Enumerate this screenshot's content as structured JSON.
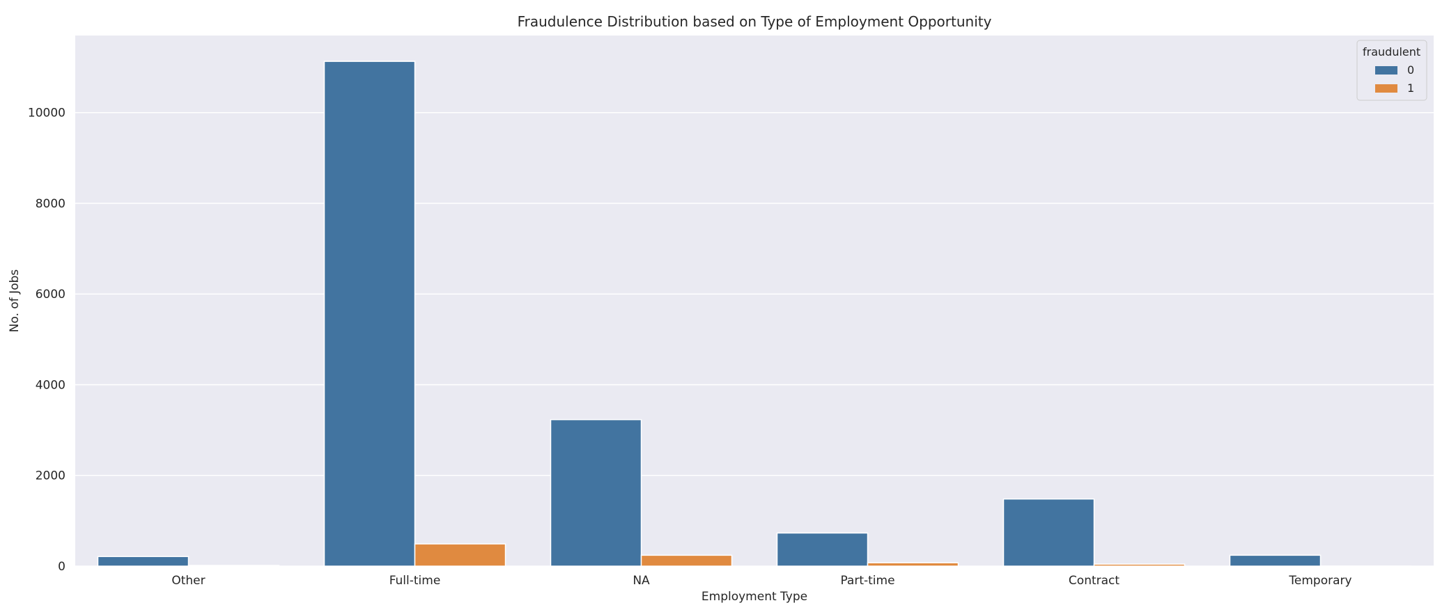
{
  "chart_data": {
    "type": "bar",
    "title": "Fraudulence Distribution based on Type of Employment Opportunity",
    "xlabel": "Employment Type",
    "ylabel": "No. of Jobs",
    "categories": [
      "Other",
      "Full-time",
      "NA",
      "Part-time",
      "Contract",
      "Temporary"
    ],
    "series": [
      {
        "name": "0",
        "color": "#4274a0",
        "values": [
          212,
          11130,
          3230,
          730,
          1480,
          240
        ]
      },
      {
        "name": "1",
        "color": "#e08a40",
        "values": [
          15,
          490,
          240,
          74,
          44,
          2
        ]
      }
    ],
    "ylim": [
      0,
      11700
    ],
    "yticks": [
      0,
      2000,
      4000,
      6000,
      8000,
      10000
    ],
    "ytick_labels": [
      "0",
      "2000",
      "4000",
      "6000",
      "8000",
      "10000"
    ],
    "grid": true,
    "background_color": "#eaeaf2",
    "legend": {
      "title": "fraudulent",
      "placement": "top-right"
    }
  }
}
